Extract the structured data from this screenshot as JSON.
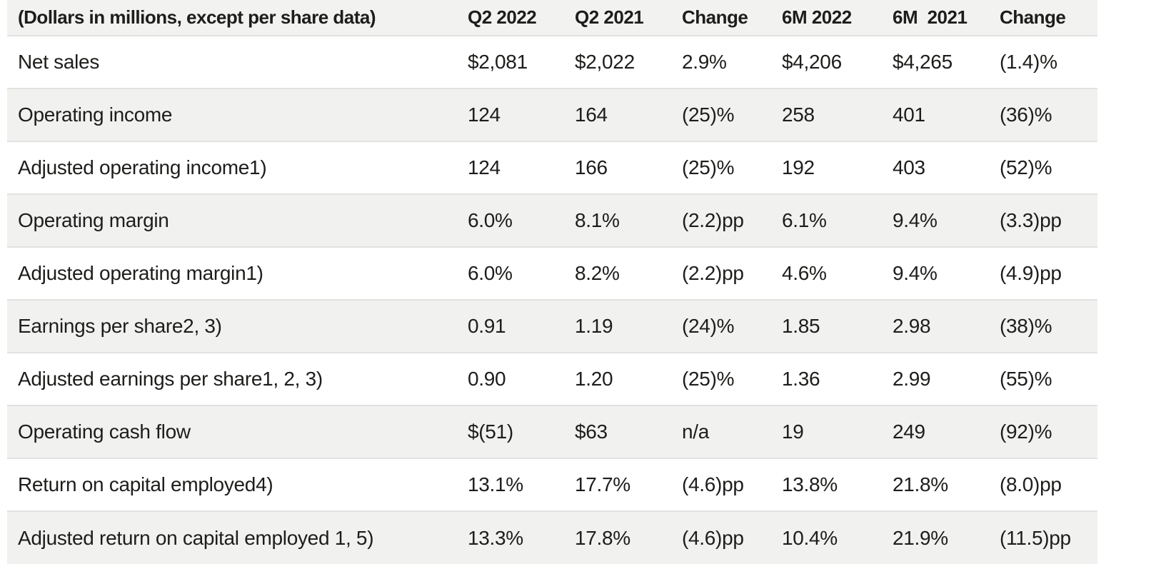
{
  "table": {
    "unit_note": "(Dollars in millions, except per share data)",
    "columns": [
      "Q2 2022",
      "Q2 2021",
      "Change",
      "6M 2022",
      "6M  2021",
      "Change"
    ],
    "rows": [
      {
        "label": "Net sales",
        "values": [
          "$2,081",
          "$2,022",
          "2.9%",
          "$4,206",
          "$4,265",
          "(1.4)%"
        ]
      },
      {
        "label": "Operating income",
        "values": [
          "124",
          "164",
          "(25)%",
          "258",
          "401",
          "(36)%"
        ]
      },
      {
        "label": "Adjusted operating income1)",
        "values": [
          "124",
          "166",
          "(25)%",
          "192",
          "403",
          "(52)%"
        ]
      },
      {
        "label": "Operating margin",
        "values": [
          "6.0%",
          "8.1%",
          "(2.2)pp",
          "6.1%",
          "9.4%",
          "(3.3)pp"
        ]
      },
      {
        "label": "Adjusted operating margin1)",
        "values": [
          "6.0%",
          "8.2%",
          "(2.2)pp",
          "4.6%",
          "9.4%",
          "(4.9)pp"
        ]
      },
      {
        "label": "Earnings per share2, 3)",
        "values": [
          "0.91",
          "1.19",
          "(24)%",
          "1.85",
          "2.98",
          "(38)%"
        ]
      },
      {
        "label": "Adjusted earnings per share1, 2, 3)",
        "values": [
          "0.90",
          "1.20",
          "(25)%",
          "1.36",
          "2.99",
          "(55)%"
        ]
      },
      {
        "label": "Operating cash flow",
        "values": [
          "$(51)",
          "$63",
          "n/a",
          "19",
          "249",
          "(92)%"
        ]
      },
      {
        "label": "Return on capital employed4)",
        "values": [
          "13.1%",
          "17.7%",
          "(4.6)pp",
          "13.8%",
          "21.8%",
          "(8.0)pp"
        ]
      },
      {
        "label": "Adjusted return on capital employed 1, 5)",
        "values": [
          "13.3%",
          "17.8%",
          "(4.6)pp",
          "10.4%",
          "21.9%",
          "(11.5)pp"
        ]
      }
    ],
    "colors": {
      "header_background": "#f2f2f0",
      "stripe_background": "#f1f1ef",
      "row_border": "#e2e2e0",
      "text": "#1d1d1b",
      "page_background": "#ffffff"
    }
  }
}
